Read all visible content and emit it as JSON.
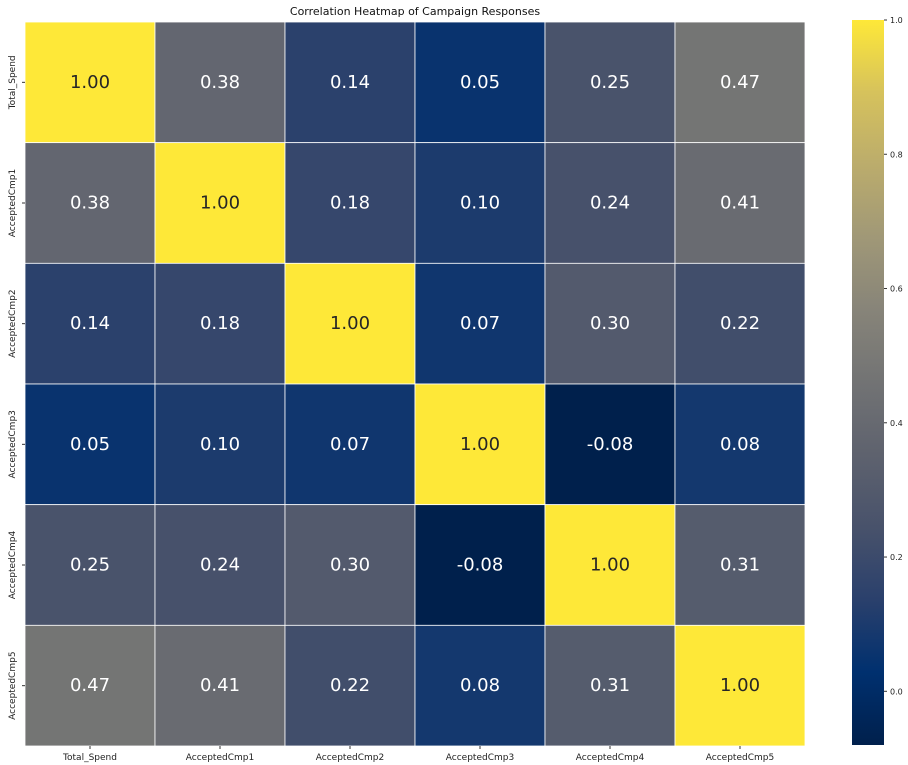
{
  "chart_data": {
    "type": "heatmap",
    "title": "Correlation Heatmap of Campaign Responses",
    "x_labels": [
      "Total_Spend",
      "AcceptedCmp1",
      "AcceptedCmp2",
      "AcceptedCmp3",
      "AcceptedCmp4",
      "AcceptedCmp5"
    ],
    "y_labels": [
      "Total_Spend",
      "AcceptedCmp1",
      "AcceptedCmp2",
      "AcceptedCmp3",
      "AcceptedCmp4",
      "AcceptedCmp5"
    ],
    "values": [
      [
        1.0,
        0.38,
        0.14,
        0.05,
        0.25,
        0.47
      ],
      [
        0.38,
        1.0,
        0.18,
        0.1,
        0.24,
        0.41
      ],
      [
        0.14,
        0.18,
        1.0,
        0.07,
        0.3,
        0.22
      ],
      [
        0.05,
        0.1,
        0.07,
        1.0,
        -0.08,
        0.08
      ],
      [
        0.25,
        0.24,
        0.3,
        -0.08,
        1.0,
        0.31
      ],
      [
        0.47,
        0.41,
        0.22,
        0.08,
        0.31,
        1.0
      ]
    ],
    "annotation_format": "0.00",
    "colormap": "cividis",
    "color_range": [
      -0.08,
      1.0
    ],
    "colorbar_ticks": [
      "0.0",
      "0.2",
      "0.4",
      "0.6",
      "0.8",
      "1.0"
    ],
    "colorbar_position": "right",
    "cell_border_color": "#ffffff"
  }
}
